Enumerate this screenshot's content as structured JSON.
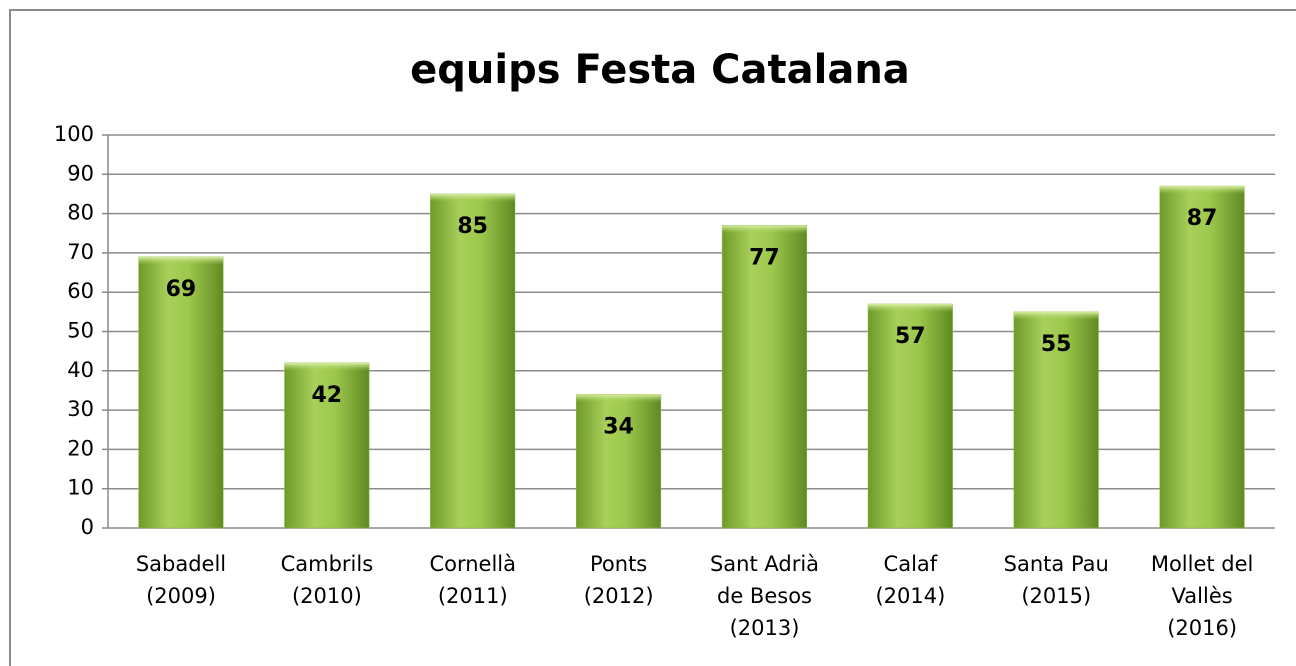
{
  "chart_data": {
    "type": "bar",
    "title": "equips Festa Catalana",
    "categories": [
      "Sabadell\n(2009)",
      "Cambrils\n(2010)",
      "Cornellà\n(2011)",
      "Ponts\n(2012)",
      "Sant Adrià\nde Besos\n(2013)",
      "Calaf\n(2014)",
      "Santa Pau\n(2015)",
      "Mollet del\nVallès\n(2016)"
    ],
    "values": [
      69,
      42,
      85,
      34,
      77,
      57,
      55,
      87
    ],
    "color": "#8db83f",
    "ylim": [
      0,
      100
    ],
    "yticks": [
      0,
      10,
      20,
      30,
      40,
      50,
      60,
      70,
      80,
      90,
      100
    ],
    "grid": true
  }
}
